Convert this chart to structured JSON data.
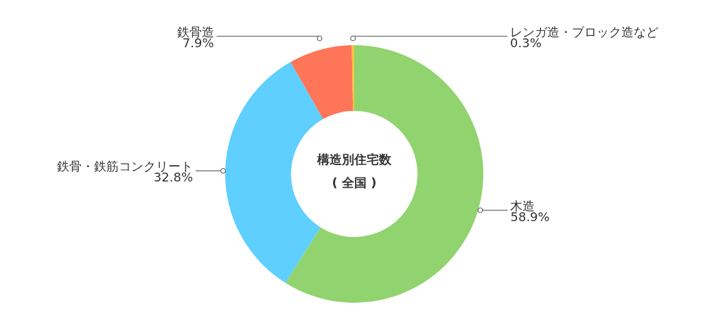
{
  "chart_data": {
    "type": "donut",
    "title": "構造別住宅数",
    "subtitle": "( 全国 )",
    "categories": [
      "木造",
      "鉄骨・鉄筋コンクリート",
      "鉄骨造",
      "レンガ造・ブロック造など"
    ],
    "values": [
      58.9,
      32.8,
      7.9,
      0.3
    ],
    "value_labels": [
      "58.9%",
      "32.8%",
      "7.9%",
      "0.3%"
    ],
    "colors": [
      "#91d36e",
      "#5ecfff",
      "#ff7557",
      "#f5c542"
    ],
    "legend": false
  }
}
